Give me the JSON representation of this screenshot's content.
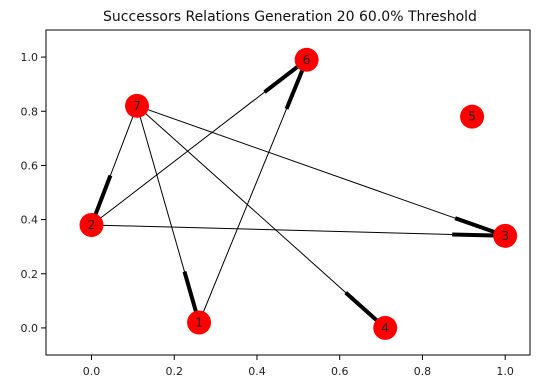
{
  "chart_data": {
    "type": "scatter",
    "title": "Successors Relations Generation 20 60.0% Threshold",
    "xlabel": "",
    "ylabel": "",
    "xlim": [
      -0.11,
      1.06
    ],
    "ylim": [
      -0.1,
      1.1
    ],
    "x_ticks": [
      0.0,
      0.2,
      0.4,
      0.6,
      0.8,
      1.0
    ],
    "y_ticks": [
      0.0,
      0.2,
      0.4,
      0.6,
      0.8,
      1.0
    ],
    "x_tick_labels": [
      "0.0",
      "0.2",
      "0.4",
      "0.6",
      "0.8",
      "1.0"
    ],
    "y_tick_labels": [
      "0.0",
      "0.2",
      "0.4",
      "0.6",
      "0.8",
      "1.0"
    ],
    "grid": false,
    "node_color": "#ff0000",
    "edge_color": "#000000",
    "nodes": [
      {
        "id": "1",
        "label": "1",
        "x": 0.26,
        "y": 0.02
      },
      {
        "id": "2",
        "label": "2",
        "x": 0.0,
        "y": 0.38
      },
      {
        "id": "3",
        "label": "3",
        "x": 1.0,
        "y": 0.34
      },
      {
        "id": "4",
        "label": "4",
        "x": 0.71,
        "y": 0.0
      },
      {
        "id": "5",
        "label": "5",
        "x": 0.92,
        "y": 0.78
      },
      {
        "id": "6",
        "label": "6",
        "x": 0.52,
        "y": 0.99
      },
      {
        "id": "7",
        "label": "7",
        "x": 0.11,
        "y": 0.82
      }
    ],
    "edges": [
      {
        "source": "7",
        "target": "1"
      },
      {
        "source": "7",
        "target": "2"
      },
      {
        "source": "7",
        "target": "3"
      },
      {
        "source": "7",
        "target": "4"
      },
      {
        "source": "2",
        "target": "6"
      },
      {
        "source": "2",
        "target": "3"
      },
      {
        "source": "1",
        "target": "6"
      }
    ]
  }
}
